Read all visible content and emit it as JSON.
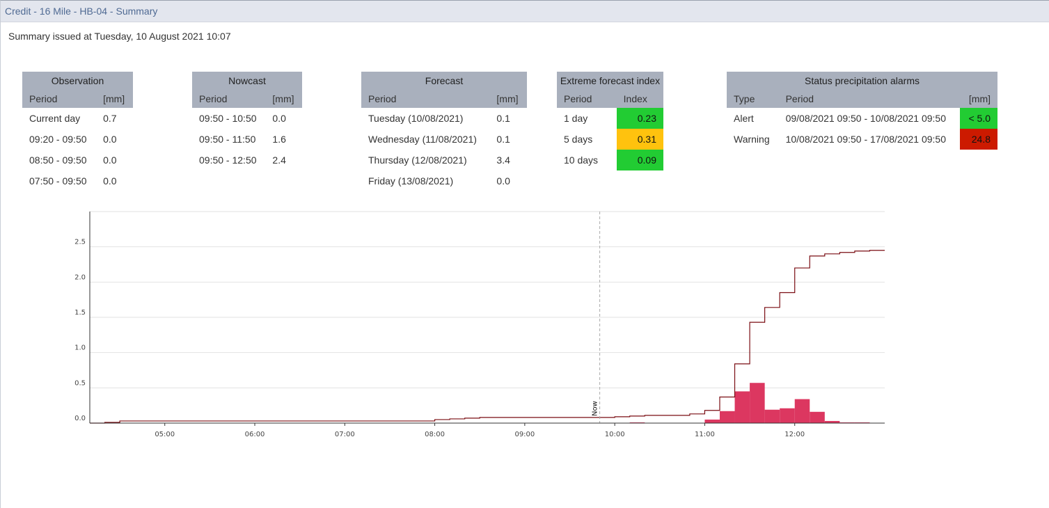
{
  "window": {
    "title": "Credit - 16 Mile - HB-04 - Summary"
  },
  "issued_text": "Summary issued at Tuesday, 10 August 2021 10:07",
  "observation": {
    "title": "Observation",
    "headers": [
      "Period",
      "[mm]"
    ],
    "rows": [
      {
        "period": "Current day",
        "value": "0.7"
      },
      {
        "period": "09:20 - 09:50",
        "value": "0.0"
      },
      {
        "period": "08:50 - 09:50",
        "value": "0.0"
      },
      {
        "period": "07:50 - 09:50",
        "value": "0.0"
      }
    ]
  },
  "nowcast": {
    "title": "Nowcast",
    "headers": [
      "Period",
      "[mm]"
    ],
    "rows": [
      {
        "period": "09:50 - 10:50",
        "value": "0.0"
      },
      {
        "period": "09:50 - 11:50",
        "value": "1.6"
      },
      {
        "period": "09:50 - 12:50",
        "value": "2.4"
      }
    ]
  },
  "forecast": {
    "title": "Forecast",
    "headers": [
      "Period",
      "[mm]"
    ],
    "rows": [
      {
        "period": "Tuesday (10/08/2021)",
        "value": "0.1"
      },
      {
        "period": "Wednesday (11/08/2021)",
        "value": "0.1"
      },
      {
        "period": "Thursday (12/08/2021)",
        "value": "3.4"
      },
      {
        "period": "Friday (13/08/2021)",
        "value": "0.0"
      }
    ]
  },
  "efi": {
    "title": "Extreme forecast index",
    "headers": [
      "Period",
      "Index"
    ],
    "rows": [
      {
        "period": "1 day",
        "value": "0.23",
        "color": "#22cc33"
      },
      {
        "period": "5 days",
        "value": "0.31",
        "color": "#ffc20e"
      },
      {
        "period": "10 days",
        "value": "0.09",
        "color": "#22cc33"
      }
    ]
  },
  "alarms": {
    "title": "Status precipitation alarms",
    "headers": [
      "Type",
      "Period",
      "[mm]"
    ],
    "rows": [
      {
        "type": "Alert",
        "period": "09/08/2021 09:50 - 10/08/2021 09:50",
        "value": "< 5.0",
        "color": "#22cc33"
      },
      {
        "type": "Warning",
        "period": "10/08/2021 09:50 - 17/08/2021 09:50",
        "value": "24.8",
        "color": "#cc1a00"
      }
    ]
  },
  "chart_data": {
    "type": "bar",
    "y_ticks": [
      "0.0",
      "0.5",
      "1.0",
      "1.5",
      "2.0",
      "2.5"
    ],
    "x_ticks": [
      "05:00",
      "06:00",
      "07:00",
      "08:00",
      "09:00",
      "10:00",
      "11:00",
      "12:00"
    ],
    "xlim": [
      "04:10",
      "13:00"
    ],
    "ylim": [
      0,
      3.0
    ],
    "now_label": "Now",
    "now_time": "09:50",
    "grid": true,
    "bar_color": "#dc3760",
    "line_color": "#7a0c12",
    "bars": [
      {
        "x": "10:10",
        "y": 0.01
      },
      {
        "x": "11:00",
        "y": 0.05
      },
      {
        "x": "11:10",
        "y": 0.17
      },
      {
        "x": "11:20",
        "y": 0.45
      },
      {
        "x": "11:30",
        "y": 0.57
      },
      {
        "x": "11:40",
        "y": 0.19
      },
      {
        "x": "11:50",
        "y": 0.21
      },
      {
        "x": "12:00",
        "y": 0.34
      },
      {
        "x": "12:10",
        "y": 0.16
      },
      {
        "x": "12:20",
        "y": 0.03
      },
      {
        "x": "12:30",
        "y": 0.01
      },
      {
        "x": "12:40",
        "y": 0.01
      }
    ],
    "cumulative": [
      {
        "x": "04:10",
        "y": 0.0
      },
      {
        "x": "04:20",
        "y": 0.01
      },
      {
        "x": "04:30",
        "y": 0.03
      },
      {
        "x": "08:00",
        "y": 0.05
      },
      {
        "x": "08:10",
        "y": 0.06
      },
      {
        "x": "08:20",
        "y": 0.07
      },
      {
        "x": "08:30",
        "y": 0.08
      },
      {
        "x": "10:00",
        "y": 0.09
      },
      {
        "x": "10:10",
        "y": 0.1
      },
      {
        "x": "10:20",
        "y": 0.11
      },
      {
        "x": "10:50",
        "y": 0.13
      },
      {
        "x": "11:00",
        "y": 0.18
      },
      {
        "x": "11:10",
        "y": 0.37
      },
      {
        "x": "11:20",
        "y": 0.84
      },
      {
        "x": "11:30",
        "y": 1.43
      },
      {
        "x": "11:40",
        "y": 1.64
      },
      {
        "x": "11:50",
        "y": 1.85
      },
      {
        "x": "12:00",
        "y": 2.2
      },
      {
        "x": "12:10",
        "y": 2.37
      },
      {
        "x": "12:20",
        "y": 2.4
      },
      {
        "x": "12:30",
        "y": 2.42
      },
      {
        "x": "12:40",
        "y": 2.44
      },
      {
        "x": "12:50",
        "y": 2.45
      }
    ]
  }
}
